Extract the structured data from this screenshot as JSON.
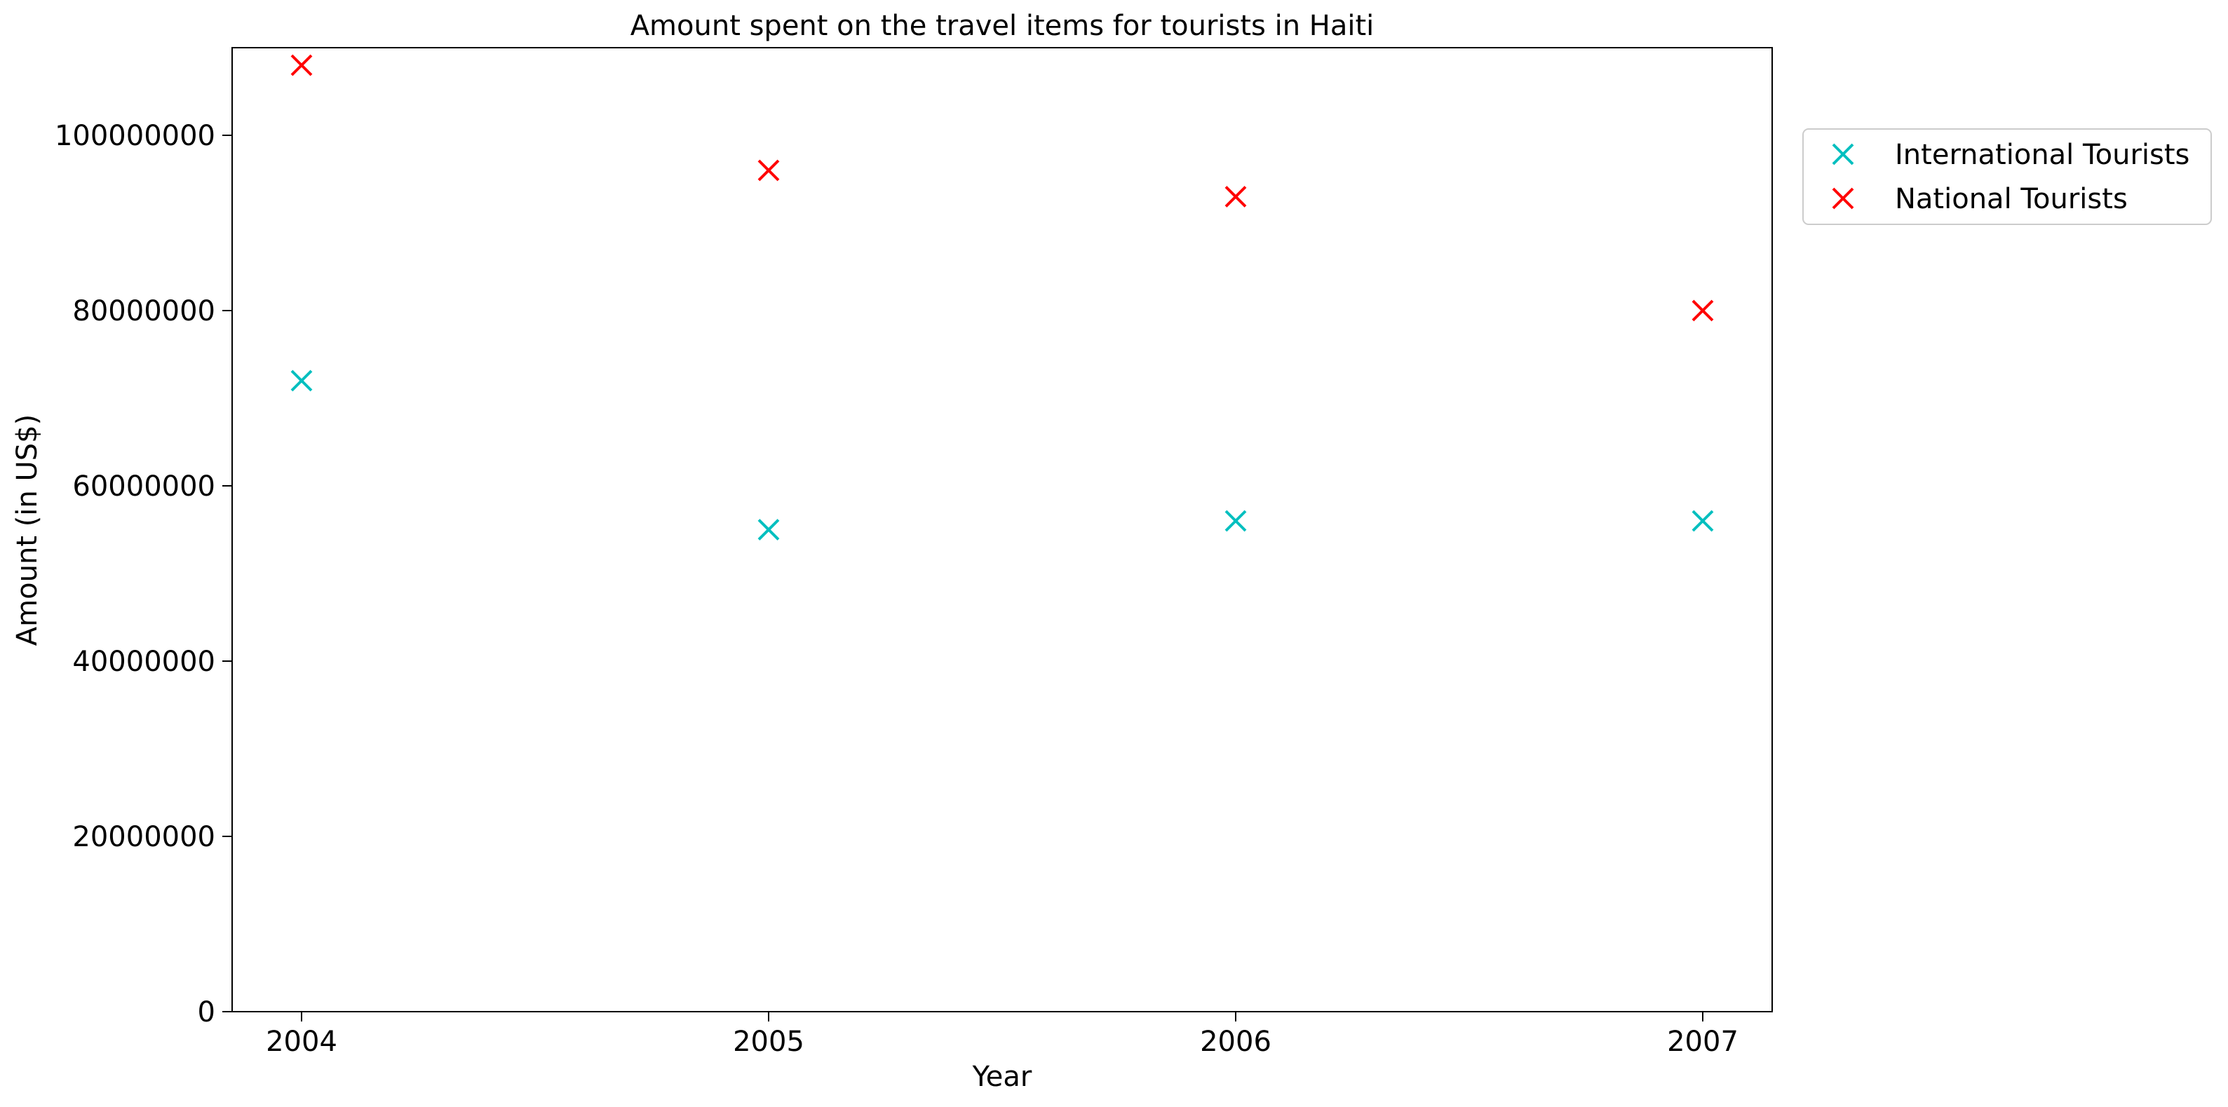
{
  "chart_data": {
    "type": "scatter",
    "title": "Amount spent on the travel items for tourists in Haiti",
    "xlabel": "Year",
    "ylabel": "Amount (in US$)",
    "x": [
      "2004",
      "2005",
      "2006",
      "2007"
    ],
    "xticks": [
      "2004",
      "2005",
      "2006",
      "2007"
    ],
    "yticks": [
      "0",
      "20000000",
      "40000000",
      "60000000",
      "80000000",
      "100000000"
    ],
    "ylim": [
      0,
      110000000
    ],
    "marker": "x",
    "grid": false,
    "legend_position": "outside-top-right",
    "series": [
      {
        "name": "International Tourists",
        "color": "#00bfbf",
        "values": [
          72000000,
          55000000,
          56000000,
          56000000
        ]
      },
      {
        "name": "National Tourists",
        "color": "#ff0000",
        "values": [
          108000000,
          96000000,
          93000000,
          80000000
        ]
      }
    ]
  }
}
